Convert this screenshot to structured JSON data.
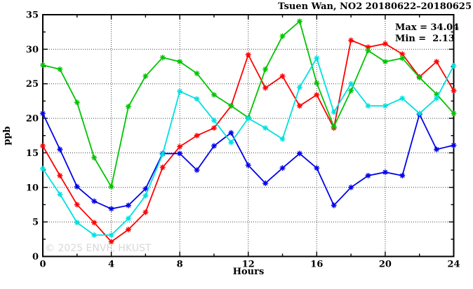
{
  "chart_data": {
    "type": "line",
    "title": "Tsuen Wan, NO2 20180622–20180625",
    "xlabel": "Hours",
    "ylabel": "ppb",
    "xlim": [
      0,
      24
    ],
    "ylim": [
      0,
      35
    ],
    "x_major_ticks": [
      0,
      4,
      8,
      12,
      16,
      20,
      24
    ],
    "x_minor_step": 2,
    "y_major_ticks": [
      0,
      5,
      10,
      15,
      20,
      25,
      30,
      35
    ],
    "y_minor_step": 2.5,
    "grid": true,
    "legend_position": "none",
    "annotations": [
      "Max = 34.04",
      "Min =  2.13"
    ],
    "annotation_max": "Max = 34.04",
    "annotation_min": "Min =  2.13",
    "watermark": "© 2025 ENVF, HKUST",
    "x": [
      0,
      1,
      2,
      3,
      4,
      5,
      6,
      7,
      8,
      9,
      10,
      11,
      12,
      13,
      14,
      15,
      16,
      17,
      18,
      19,
      20,
      21,
      22,
      23,
      24
    ],
    "series": [
      {
        "name": "series-red",
        "color": "#ff0000",
        "values": [
          16.0,
          11.7,
          7.5,
          4.9,
          2.13,
          3.9,
          6.4,
          12.9,
          15.9,
          17.5,
          18.6,
          21.8,
          29.2,
          24.4,
          26.1,
          21.8,
          23.4,
          18.6,
          31.3,
          30.3,
          30.8,
          29.3,
          26.0,
          28.2,
          24.0
        ]
      },
      {
        "name": "series-green",
        "color": "#00c400",
        "values": [
          27.7,
          27.1,
          22.3,
          14.3,
          10.1,
          21.7,
          26.1,
          28.8,
          28.2,
          26.5,
          23.4,
          21.8,
          20.1,
          27.1,
          31.9,
          34.04,
          25.1,
          18.8,
          24.0,
          29.8,
          28.2,
          28.7,
          25.9,
          23.5,
          20.7
        ]
      },
      {
        "name": "series-blue",
        "color": "#0000ee",
        "values": [
          20.7,
          15.5,
          10.1,
          8.0,
          6.9,
          7.4,
          9.8,
          14.9,
          14.9,
          12.5,
          16.0,
          17.9,
          13.2,
          10.6,
          12.8,
          14.9,
          12.8,
          7.4,
          10.0,
          11.7,
          12.2,
          11.7,
          20.6,
          15.5,
          16.1
        ]
      },
      {
        "name": "series-cyan",
        "color": "#00e0e0",
        "values": [
          12.7,
          9.0,
          4.9,
          3.1,
          3.1,
          5.5,
          8.8,
          14.8,
          23.9,
          22.8,
          19.7,
          16.5,
          20.0,
          18.6,
          17.0,
          24.5,
          28.7,
          20.9,
          25.0,
          21.8,
          21.8,
          22.9,
          20.7,
          22.9,
          27.6
        ]
      }
    ]
  }
}
